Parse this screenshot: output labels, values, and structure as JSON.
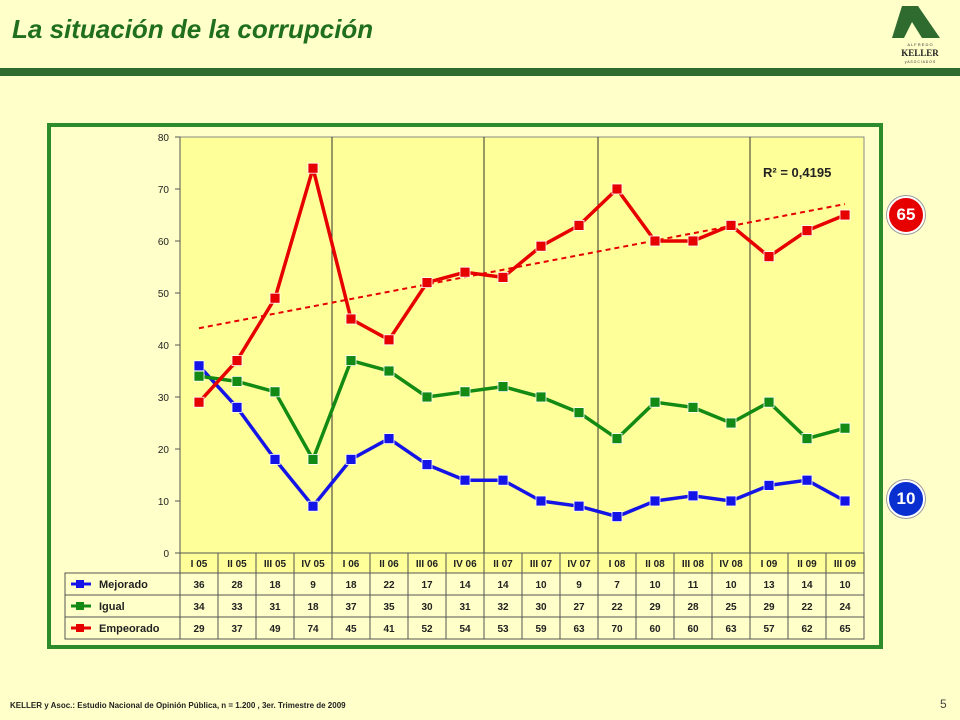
{
  "title": "La situación de la corrupción",
  "logo": {
    "top": "A L F R E D O",
    "name": "KELLER",
    "bottom": "y  A S O C I A D O S"
  },
  "badges": {
    "red": "65",
    "blue": "10"
  },
  "footer": "KELLER y Asoc.: Estudio Nacional de Opinión Pública, n = 1.200 , 3er. Trimestre de 2009",
  "page_number": "5",
  "colors": {
    "mejorado": "#1414e6",
    "igual": "#138a13",
    "empeorado": "#e60000",
    "plot_bg": "#ffff99",
    "frame": "#2c8c2c"
  },
  "chart_data": {
    "type": "line",
    "categories": [
      "I 05",
      "II 05",
      "III 05",
      "IV 05",
      "I 06",
      "II 06",
      "III 06",
      "IV 06",
      "II 07",
      "III 07",
      "IV 07",
      "I 08",
      "II 08",
      "III 08",
      "IV 08",
      "I 09",
      "II 09",
      "III 09"
    ],
    "series": [
      {
        "name": "Mejorado",
        "color": "#1414e6",
        "values": [
          36,
          28,
          18,
          9,
          18,
          22,
          17,
          14,
          14,
          10,
          9,
          7,
          10,
          11,
          10,
          13,
          14,
          10
        ]
      },
      {
        "name": "Igual",
        "color": "#138a13",
        "values": [
          34,
          33,
          31,
          18,
          37,
          35,
          30,
          31,
          32,
          30,
          27,
          22,
          29,
          28,
          25,
          29,
          22,
          24
        ]
      },
      {
        "name": "Empeorado",
        "color": "#e60000",
        "values": [
          29,
          37,
          49,
          74,
          45,
          41,
          52,
          54,
          53,
          59,
          63,
          70,
          60,
          60,
          63,
          57,
          62,
          65
        ]
      }
    ],
    "trendline": {
      "series": "Empeorado",
      "type": "linear",
      "r2_label": "R² = 0,4195"
    },
    "ylim": [
      0,
      80
    ],
    "yticks": [
      0,
      10,
      20,
      30,
      40,
      50,
      60,
      70,
      80
    ],
    "grid": "vertical lines at year boundaries",
    "legend": "data table below chart"
  }
}
